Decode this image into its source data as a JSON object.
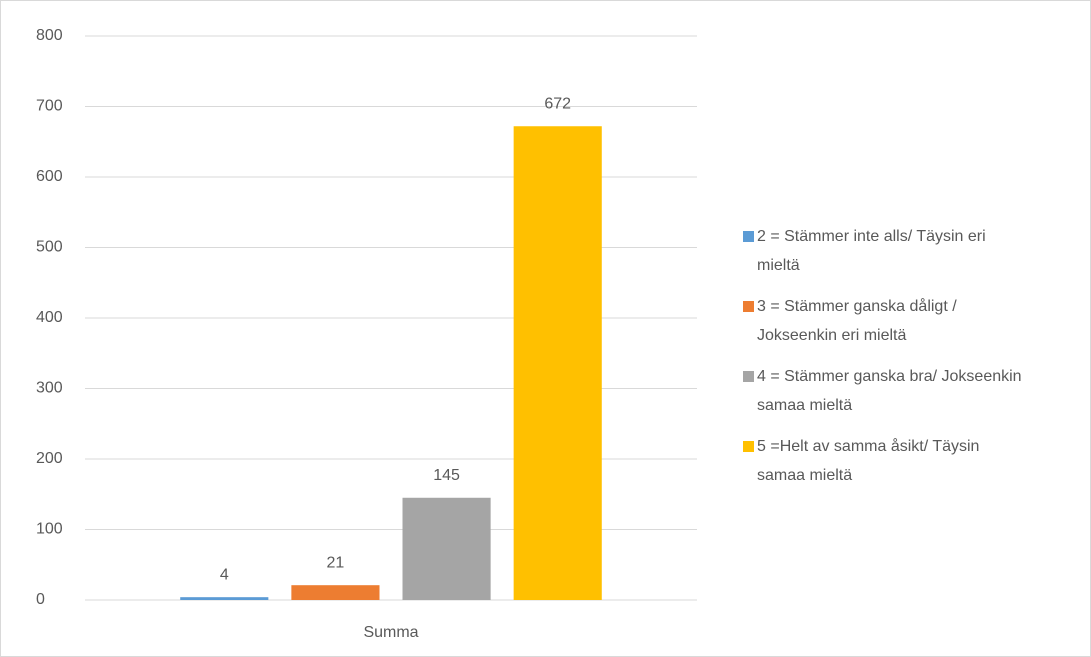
{
  "chart_data": {
    "type": "bar",
    "categories": [
      "Summa"
    ],
    "series": [
      {
        "name": "2 = Stämmer inte alls/ Täysin eri mieltä",
        "color": "#5b9bd5",
        "values": [
          4
        ]
      },
      {
        "name": "3 = Stämmer ganska dåligt / Jokseenkin eri mieltä",
        "color": "#ed7d31",
        "values": [
          21
        ]
      },
      {
        "name": "4 = Stämmer ganska bra/ Jokseenkin samaa mieltä",
        "color": "#a5a5a5",
        "values": [
          145
        ]
      },
      {
        "name": "5 =Helt av samma åsikt/ Täysin samaa mieltä",
        "color": "#ffc000",
        "values": [
          672
        ]
      }
    ],
    "ylim": [
      0,
      800
    ],
    "yticks": [
      0,
      100,
      200,
      300,
      400,
      500,
      600,
      700,
      800
    ],
    "grid": true,
    "legend": "right"
  }
}
